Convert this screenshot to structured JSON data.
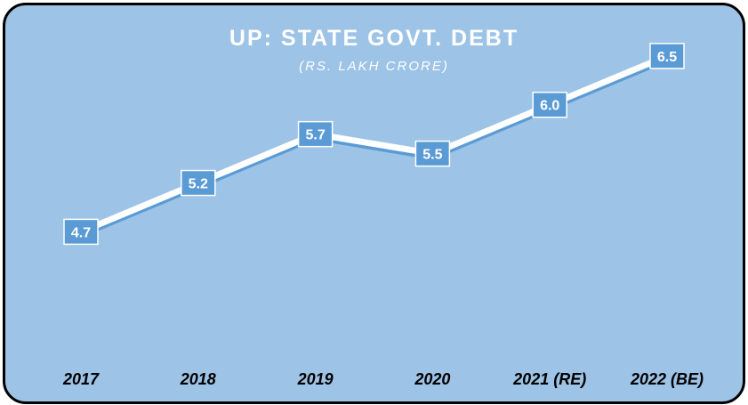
{
  "colors": {
    "background": "#9dc3e6",
    "line": "#ffffff",
    "line_shadow": "#5b9bd5",
    "label_box": "#5b9bd5",
    "label_text": "#ffffff",
    "border": "#000000"
  },
  "chart_data": {
    "type": "line",
    "title": "UP: STATE GOVT. DEBT",
    "subtitle": "(RS. LAKH CRORE)",
    "categories": [
      "2017",
      "2018",
      "2019",
      "2020",
      "2021 (RE)",
      "2022 (BE)"
    ],
    "values": [
      4.7,
      5.2,
      5.7,
      5.5,
      6.0,
      6.5
    ],
    "value_labels": [
      "4.7",
      "5.2",
      "5.7",
      "5.5",
      "6.0",
      "6.5"
    ],
    "ylim": [
      3.2,
      7.0
    ],
    "grid": false,
    "legend": "none"
  }
}
